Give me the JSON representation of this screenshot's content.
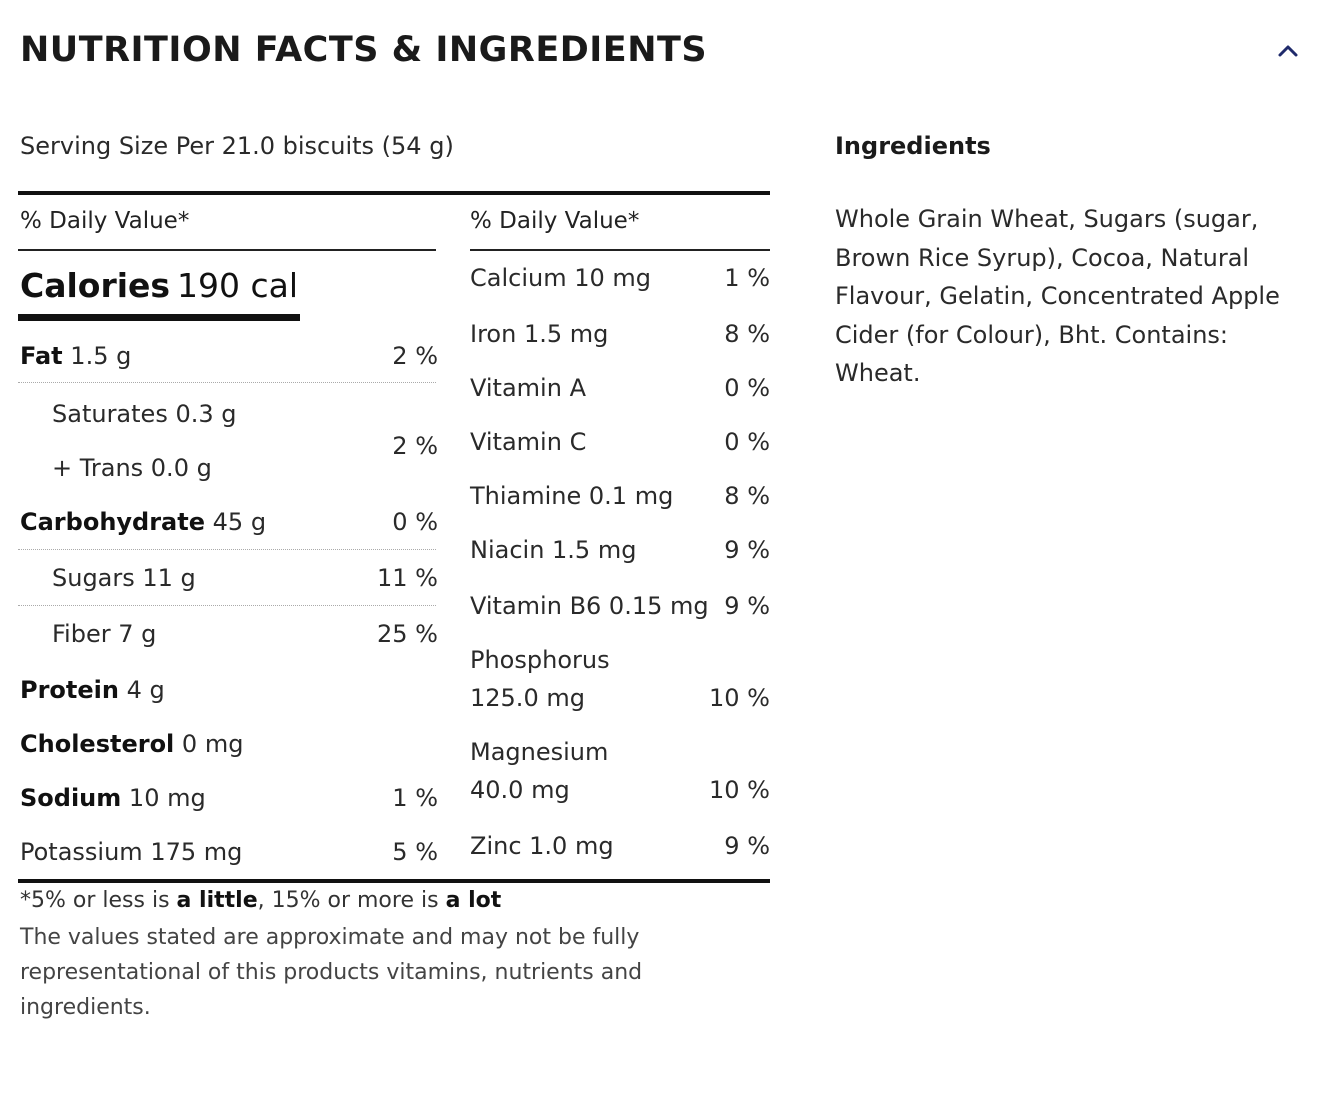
{
  "header": {
    "title": "NUTRITION FACTS & INGREDIENTS",
    "toggle_icon": "chevron-up-icon"
  },
  "serving": {
    "text": "Serving Size Per 21.0 biscuits (54 g)"
  },
  "daily_value_header": "% Daily Value*",
  "calories": {
    "label": "Calories",
    "value": "190 cal"
  },
  "left_rows": [
    {
      "label": "Fat",
      "value": "1.5 g",
      "pct": "2 %"
    },
    {
      "label": "Saturates 0.3 g",
      "pct": ""
    },
    {
      "label": "+ Trans 0.0 g",
      "pct": ""
    },
    {
      "label": "",
      "pct": "2 %"
    },
    {
      "label": "Carbohydrate",
      "value": "45 g",
      "pct": "0 %"
    },
    {
      "label": "Sugars 11 g",
      "pct": "11 %"
    },
    {
      "label": "Fiber 7 g",
      "pct": "25 %"
    },
    {
      "label": "Protein",
      "value": "4 g",
      "pct": ""
    },
    {
      "label": "Cholesterol",
      "value": "0 mg",
      "pct": ""
    },
    {
      "label": "Sodium",
      "value": "10 mg",
      "pct": "1 %"
    },
    {
      "label": "Potassium 175 mg",
      "pct": "5 %"
    }
  ],
  "right_rows": [
    {
      "label": "Calcium 10 mg",
      "pct": "1 %"
    },
    {
      "label": "Iron 1.5 mg",
      "pct": "8 %"
    },
    {
      "label": "Vitamin A",
      "pct": "0 %"
    },
    {
      "label": "Vitamin C",
      "pct": "0 %"
    },
    {
      "label": "Thiamine 0.1 mg",
      "pct": "8 %"
    },
    {
      "label": "Niacin 1.5 mg",
      "pct": "9 %"
    },
    {
      "label": "Vitamin B6 0.15 mg",
      "pct": "9 %"
    },
    {
      "label": "Phosphorus",
      "label2": "125.0 mg",
      "pct": "10 %"
    },
    {
      "label": "Magnesium",
      "label2": "40.0 mg",
      "pct": "10 %"
    },
    {
      "label": "Zinc 1.0 mg",
      "pct": "9 %"
    }
  ],
  "footnote": {
    "part1": "*5% or less is ",
    "bold1": "a little",
    "part2": ", 15% or more is ",
    "bold2": "a lot",
    "disclaimer": "The values stated are approximate and may not be fully representational of this products vitamins, nutrients and ingredients."
  },
  "ingredients": {
    "heading": "Ingredients",
    "text": "Whole Grain Wheat, Sugars (sugar, Brown Rice Syrup), Cocoa, Natural Flavour, Gelatin, Concentrated Apple Cider (for Colour), Bht. Contains: Wheat."
  }
}
